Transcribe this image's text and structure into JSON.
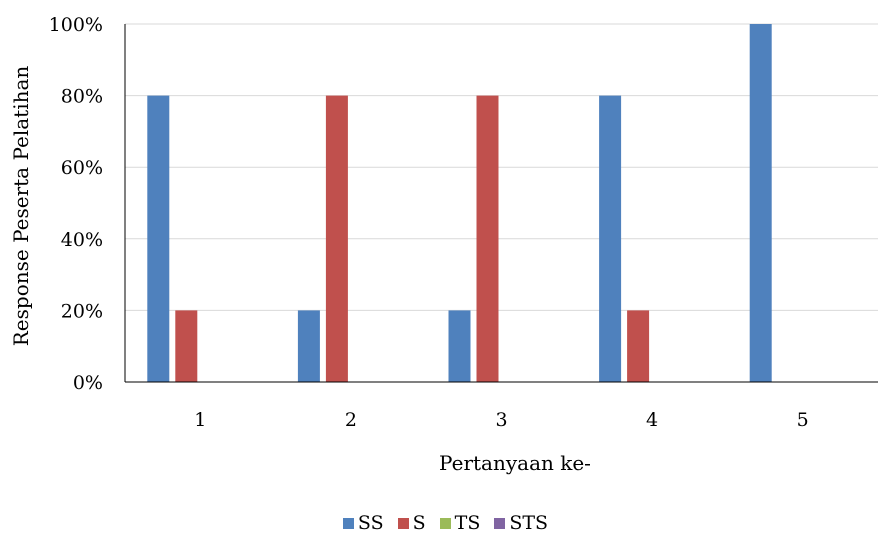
{
  "chart_data": {
    "type": "bar",
    "title": "",
    "xlabel": "Pertanyaan ke-",
    "ylabel": "Response Peserta Pelatihan",
    "categories": [
      "1",
      "2",
      "3",
      "4",
      "5"
    ],
    "ylim": [
      0,
      100
    ],
    "yticks": [
      "0%",
      "20%",
      "40%",
      "60%",
      "80%",
      "100%"
    ],
    "grid": true,
    "legend_position": "bottom",
    "series": [
      {
        "name": "SS",
        "color": "#4F81BD",
        "values": [
          80,
          20,
          20,
          80,
          100
        ]
      },
      {
        "name": "S",
        "color": "#C0504D",
        "values": [
          20,
          80,
          80,
          20,
          0
        ]
      },
      {
        "name": "TS",
        "color": "#9BBB59",
        "values": [
          0,
          0,
          0,
          0,
          0
        ]
      },
      {
        "name": "STS",
        "color": "#8064A2",
        "values": [
          0,
          0,
          0,
          0,
          0
        ]
      }
    ]
  }
}
